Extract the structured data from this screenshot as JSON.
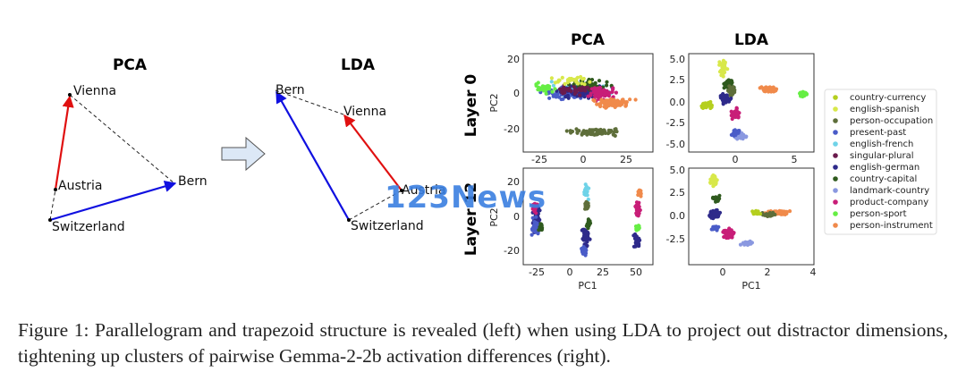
{
  "diagrams": {
    "pca": {
      "title": "PCA",
      "labels": {
        "vienna": "Vienna",
        "austria": "Austria",
        "bern": "Bern",
        "switzerland": "Switzerland"
      }
    },
    "lda": {
      "title": "LDA",
      "labels": {
        "bern": "Bern",
        "vienna": "Vienna",
        "austria": "Austria",
        "switzerland": "Switzerland"
      }
    },
    "arrow_color_red": "#e01010",
    "arrow_color_blue": "#1010e0"
  },
  "scatter_grid": {
    "col_titles": [
      "PCA",
      "LDA"
    ],
    "row_titles": [
      "Layer 0",
      "Layer 12"
    ],
    "xlabel": "PC1",
    "ylabel": "PC2",
    "panels": {
      "pca_l0": {
        "xticks": [
          "-25",
          "0",
          "25"
        ],
        "yticks": [
          "20",
          "0",
          "-20"
        ]
      },
      "lda_l0": {
        "xticks": [
          "0",
          "5"
        ],
        "yticks": [
          "5.0",
          "2.5",
          "0.0",
          "-2.5",
          "-5.0"
        ]
      },
      "pca_l12": {
        "xticks": [
          "-25",
          "0",
          "25",
          "50"
        ],
        "yticks": [
          "20",
          "0",
          "-20"
        ]
      },
      "lda_l12": {
        "xticks": [
          "0",
          "2",
          "4"
        ],
        "yticks": [
          "5.0",
          "2.5",
          "0.0",
          "-2.5"
        ]
      }
    }
  },
  "legend": [
    {
      "label": "country-currency",
      "color": "#b5cf1f"
    },
    {
      "label": "english-spanish",
      "color": "#d8e84a"
    },
    {
      "label": "person-occupation",
      "color": "#5e6e3a"
    },
    {
      "label": "present-past",
      "color": "#4a5cc8"
    },
    {
      "label": "english-french",
      "color": "#6fd3e8"
    },
    {
      "label": "singular-plural",
      "color": "#6a1b4d"
    },
    {
      "label": "english-german",
      "color": "#2e2a8a"
    },
    {
      "label": "country-capital",
      "color": "#2f5a1e"
    },
    {
      "label": "landmark-country",
      "color": "#8a98e0"
    },
    {
      "label": "product-company",
      "color": "#c81e78"
    },
    {
      "label": "person-sport",
      "color": "#66ee44"
    },
    {
      "label": "person-instrument",
      "color": "#f08a4b"
    }
  ],
  "watermark": "123News",
  "caption": "Figure 1: Parallelogram and trapezoid structure is revealed (left) when using LDA to project out distractor dimensions, tightening up clusters of pairwise Gemma-2-2b activation differences (right)."
}
